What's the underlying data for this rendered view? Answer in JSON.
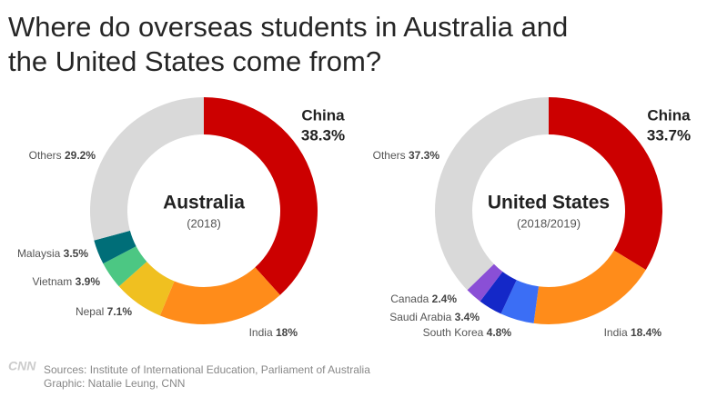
{
  "title": "Where do overseas students in Australia and the United States come from?",
  "chart_data": [
    {
      "type": "pie",
      "title": "Australia",
      "subtitle": "(2018)",
      "categories": [
        "China",
        "India",
        "Nepal",
        "Vietnam",
        "Malaysia",
        "Others"
      ],
      "values": [
        38.3,
        18,
        7.1,
        3.9,
        3.5,
        29.2
      ],
      "value_labels": [
        "38.3%",
        "18%",
        "7.1%",
        "3.9%",
        "3.5%",
        "29.2%"
      ],
      "colors": [
        "#cc0000",
        "#ff8c1a",
        "#f0c020",
        "#4cc783",
        "#006e78",
        "#d9d9d9"
      ]
    },
    {
      "type": "pie",
      "title": "United States",
      "subtitle": "(2018/2019)",
      "categories": [
        "China",
        "India",
        "South Korea",
        "Saudi Arabia",
        "Canada",
        "Others"
      ],
      "values": [
        33.7,
        18.4,
        4.8,
        3.4,
        2.4,
        37.3
      ],
      "value_labels": [
        "33.7%",
        "18.4%",
        "4.8%",
        "3.4%",
        "2.4%",
        "37.3%"
      ],
      "colors": [
        "#cc0000",
        "#ff8c1a",
        "#3b6ef5",
        "#1428c8",
        "#8a4fd6",
        "#d9d9d9"
      ]
    }
  ],
  "logo": "CNN",
  "sources": "Sources: Institute of International Education, Parliament of Australia",
  "credit": "Graphic: Natalie Leung, CNN"
}
